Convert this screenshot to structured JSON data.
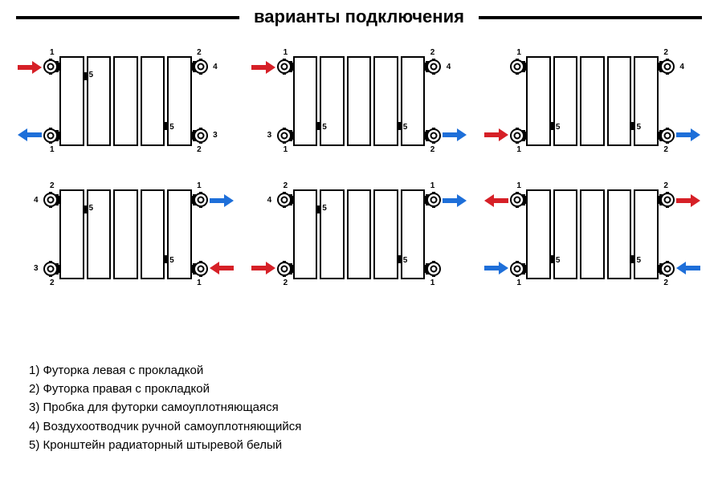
{
  "title": "варианты подключения",
  "colors": {
    "in": "#d62027",
    "out": "#1e6fd9",
    "line": "#000000"
  },
  "radiator": {
    "sections": 5,
    "bracket_label": "5"
  },
  "legend": [
    "1) Футорка левая с прокладкой",
    "2) Футорка правая с прокладкой",
    "3) Пробка для футорки самоуплотняющаяся",
    "4) Воздухоотводчик ручной самоуплотняющийся",
    "5) Кронштейн радиаторный штыревой белый"
  ],
  "fitting_labels": {
    "1": "1",
    "2": "2",
    "3": "3",
    "4": "4"
  },
  "diagrams": [
    {
      "corners": {
        "tl": {
          "fit": "1",
          "side": "L",
          "aux": null
        },
        "tr": {
          "fit": "2",
          "side": "R",
          "aux": "4"
        },
        "bl": {
          "fit": "1",
          "side": "L",
          "aux": null
        },
        "br": {
          "fit": "2",
          "side": "R",
          "aux": "3"
        }
      },
      "arrows": [
        {
          "corner": "tl",
          "dir": "in",
          "color": "in"
        },
        {
          "corner": "bl",
          "dir": "out",
          "color": "out"
        }
      ],
      "brackets": [
        "sec1-top",
        "sec4-bot"
      ]
    },
    {
      "corners": {
        "tl": {
          "fit": "1",
          "side": "L",
          "aux": null
        },
        "tr": {
          "fit": "2",
          "side": "R",
          "aux": "4"
        },
        "bl": {
          "fit": "1",
          "side": "L",
          "aux": "3"
        },
        "br": {
          "fit": "2",
          "side": "R",
          "aux": null
        }
      },
      "arrows": [
        {
          "corner": "tl",
          "dir": "in",
          "color": "in"
        },
        {
          "corner": "br",
          "dir": "out",
          "color": "out"
        }
      ],
      "brackets": [
        "sec1-bot",
        "sec4-bot"
      ]
    },
    {
      "corners": {
        "tl": {
          "fit": "1",
          "side": "L",
          "aux": null
        },
        "tr": {
          "fit": "2",
          "side": "R",
          "aux": "4"
        },
        "bl": {
          "fit": "1",
          "side": "L",
          "aux": null
        },
        "br": {
          "fit": "2",
          "side": "R",
          "aux": null
        }
      },
      "arrows": [
        {
          "corner": "bl",
          "dir": "in",
          "color": "in"
        },
        {
          "corner": "br",
          "dir": "out",
          "color": "out"
        }
      ],
      "brackets": [
        "sec1-bot",
        "sec4-bot"
      ]
    },
    {
      "corners": {
        "tl": {
          "fit": "2",
          "side": "L",
          "aux": "4"
        },
        "tr": {
          "fit": "1",
          "side": "R",
          "aux": null
        },
        "bl": {
          "fit": "2",
          "side": "L",
          "aux": "3"
        },
        "br": {
          "fit": "1",
          "side": "R",
          "aux": null
        }
      },
      "arrows": [
        {
          "corner": "tr",
          "dir": "out",
          "color": "out"
        },
        {
          "corner": "br",
          "dir": "in",
          "color": "in"
        }
      ],
      "brackets": [
        "sec1-top",
        "sec4-bot"
      ]
    },
    {
      "corners": {
        "tl": {
          "fit": "2",
          "side": "L",
          "aux": "4"
        },
        "tr": {
          "fit": "1",
          "side": "R",
          "aux": null
        },
        "bl": {
          "fit": "2",
          "side": "L",
          "aux": null
        },
        "br": {
          "fit": "1",
          "side": "R",
          "aux": null
        }
      },
      "arrows": [
        {
          "corner": "tr",
          "dir": "out",
          "color": "out"
        },
        {
          "corner": "bl",
          "dir": "in",
          "color": "in"
        }
      ],
      "brackets": [
        "sec1-top",
        "sec4-bot"
      ]
    },
    {
      "corners": {
        "tl": {
          "fit": "1",
          "side": "L",
          "aux": null
        },
        "tr": {
          "fit": "2",
          "side": "R",
          "aux": null
        },
        "bl": {
          "fit": "1",
          "side": "L",
          "aux": null
        },
        "br": {
          "fit": "2",
          "side": "R",
          "aux": null
        }
      },
      "arrows": [
        {
          "corner": "tr",
          "dir": "out",
          "color": "in"
        },
        {
          "corner": "bl",
          "dir": "in",
          "color": "out"
        },
        {
          "corner": "br",
          "dir": "in",
          "color": "out"
        },
        {
          "corner": "tl",
          "dir": "out",
          "color": "in"
        }
      ],
      "brackets": [
        "sec1-bot",
        "sec4-bot"
      ]
    }
  ]
}
